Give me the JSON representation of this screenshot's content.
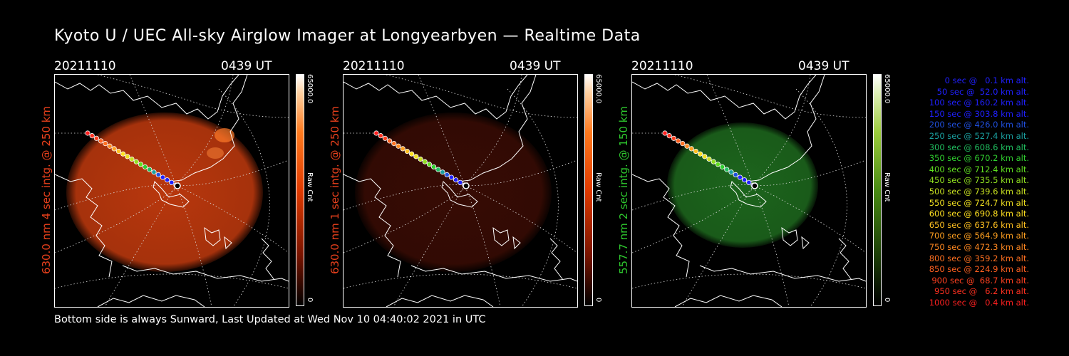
{
  "title": "Kyoto U / UEC All-sky Airglow Imager at Longyearbyen — Realtime Data",
  "panels": [
    {
      "date": "20211110",
      "time": "0439 UT",
      "ylabel": "630.0 nm 4 sec intg. @ 250 km",
      "ylabel_color": "#e8401c",
      "colorbar_max": "65000.0",
      "colorbar_min": "0",
      "colorbar_label": "Raw Cnt",
      "disk_color": "#c23a0e",
      "disk_opacity": 0.95
    },
    {
      "date": "20211110",
      "time": "0439 UT",
      "ylabel": "630.0 nm 1 sec intg. @ 250 km",
      "ylabel_color": "#e8401c",
      "colorbar_max": "65000.0",
      "colorbar_min": "0",
      "colorbar_label": "Raw Cnt",
      "disk_color": "#3a0c04",
      "disk_opacity": 0.95
    },
    {
      "date": "20211110",
      "time": "0439 UT",
      "ylabel": "557.7 nm 2 sec intg. @ 150 km",
      "ylabel_color": "#2ec82e",
      "colorbar_max": "65000.0",
      "colorbar_min": "0",
      "colorbar_label": "Raw Cnt",
      "disk_color": "#1e6a1e",
      "disk_opacity": 0.95
    }
  ],
  "legend": [
    {
      "text": "0 sec @   0.1 km alt.",
      "color": "#2020ff"
    },
    {
      "text": "50 sec @  52.0 km alt.",
      "color": "#2020ff"
    },
    {
      "text": "100 sec @ 160.2 km alt.",
      "color": "#2020ff"
    },
    {
      "text": "150 sec @ 303.8 km alt.",
      "color": "#2020ff"
    },
    {
      "text": "200 sec @ 426.0 km alt.",
      "color": "#2050e0"
    },
    {
      "text": "250 sec @ 527.4 km alt.",
      "color": "#1aa0a0"
    },
    {
      "text": "300 sec @ 608.6 km alt.",
      "color": "#20c060"
    },
    {
      "text": "350 sec @ 670.2 km alt.",
      "color": "#30d030"
    },
    {
      "text": "400 sec @ 712.4 km alt.",
      "color": "#60e020"
    },
    {
      "text": "450 sec @ 735.5 km alt.",
      "color": "#90e020"
    },
    {
      "text": "500 sec @ 739.6 km alt.",
      "color": "#c8e020"
    },
    {
      "text": "550 sec @ 724.7 km alt.",
      "color": "#f0e020"
    },
    {
      "text": "600 sec @ 690.8 km alt.",
      "color": "#ffe020"
    },
    {
      "text": "650 sec @ 637.6 km alt.",
      "color": "#ffc020"
    },
    {
      "text": "700 sec @ 564.9 km alt.",
      "color": "#ffa020"
    },
    {
      "text": "750 sec @ 472.3 km alt.",
      "color": "#ff8820"
    },
    {
      "text": "800 sec @ 359.2 km alt.",
      "color": "#ff7020"
    },
    {
      "text": "850 sec @ 224.9 km alt.",
      "color": "#ff6020"
    },
    {
      "text": "900 sec @  68.7 km alt.",
      "color": "#ff4020"
    },
    {
      "text": "950 sec @   6.2 km alt.",
      "color": "#ff3020"
    },
    {
      "text": "1000 sec @   0.4 km alt.",
      "color": "#ff2020"
    }
  ],
  "footer": "Bottom side is always Sunward, Last Updated at Wed Nov 10 04:40:02 2021 in UTC"
}
